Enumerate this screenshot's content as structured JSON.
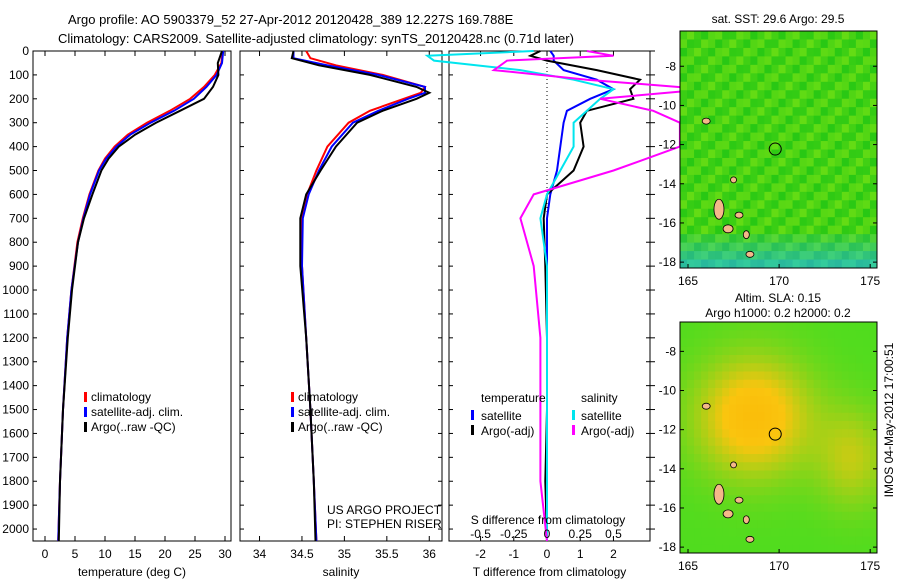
{
  "header": {
    "title_line1": "Argo profile: AO 5903379_52 27-Apr-2012 20120428_389 12.227S 169.788E",
    "title_line2": "Climatology: CARS2009. Satellite-adjusted climatology: synTS_20120428.nc (0.71d later)"
  },
  "colors": {
    "clim": "#ff0000",
    "sat": "#0000ff",
    "argo": "#000000",
    "sal_sat": "#00e5ee",
    "sal_argo": "#ff00ff"
  },
  "chart_data": [
    {
      "type": "line",
      "xlabel": "temperature (deg C)",
      "ylabel": "",
      "xlim": [
        -2,
        31
      ],
      "ylim": [
        2050,
        0
      ],
      "xticks": [
        "0",
        "5",
        "10",
        "15",
        "20",
        "25",
        "30"
      ],
      "yticks": [
        "0",
        "100",
        "200",
        "300",
        "400",
        "500",
        "600",
        "700",
        "800",
        "900",
        "1000",
        "1100",
        "1200",
        "1300",
        "1400",
        "1500",
        "1600",
        "1700",
        "1800",
        "1900",
        "2000"
      ],
      "legend": [
        "climatology",
        "satellite-adj. clim.",
        "Argo(..raw -QC)"
      ],
      "depth": [
        0,
        50,
        100,
        150,
        200,
        250,
        300,
        350,
        400,
        450,
        500,
        600,
        700,
        800,
        1000,
        1200,
        1500,
        1800,
        2050
      ],
      "series": [
        {
          "name": "climatology",
          "values": [
            29.6,
            29.4,
            28.3,
            26.5,
            24.2,
            20.8,
            17.0,
            13.8,
            11.6,
            10.0,
            8.9,
            7.4,
            6.3,
            5.4,
            4.4,
            3.7,
            3.0,
            2.5,
            2.2
          ]
        },
        {
          "name": "satellite-adj. clim.",
          "values": [
            29.7,
            29.5,
            28.6,
            26.9,
            24.8,
            21.5,
            17.6,
            14.2,
            11.9,
            10.2,
            9.0,
            7.5,
            6.4,
            5.5,
            4.4,
            3.7,
            3.0,
            2.5,
            2.2
          ]
        },
        {
          "name": "Argo(..raw -QC)",
          "values": [
            29.5,
            28.8,
            28.9,
            28.0,
            26.5,
            22.5,
            18.5,
            15.0,
            12.3,
            10.6,
            9.4,
            7.9,
            6.5,
            5.5,
            4.5,
            3.8,
            3.0,
            2.5,
            2.3
          ]
        }
      ]
    },
    {
      "type": "line",
      "xlabel": "salinity",
      "xlim": [
        33.77,
        36.15
      ],
      "ylim": [
        2050,
        0
      ],
      "xticks": [
        "34",
        "34.5",
        "35",
        "35.5",
        "36"
      ],
      "legend": [
        "climatology",
        "satellite-adj. clim.",
        "Argo(..raw -QC)"
      ],
      "annotation": [
        "US ARGO PROJECT",
        "PI: STEPHEN RISER"
      ],
      "depth": [
        0,
        30,
        60,
        100,
        150,
        175,
        200,
        250,
        300,
        400,
        500,
        600,
        700,
        900,
        1200,
        1500,
        1800,
        2050
      ],
      "series": [
        {
          "name": "climatology",
          "values": [
            34.55,
            34.6,
            34.9,
            35.45,
            35.95,
            35.9,
            35.7,
            35.3,
            35.05,
            34.8,
            34.67,
            34.56,
            34.5,
            34.5,
            34.55,
            34.6,
            34.64,
            34.67
          ]
        },
        {
          "name": "satellite-adj. clim.",
          "values": [
            34.4,
            34.4,
            34.8,
            35.4,
            35.95,
            35.95,
            35.75,
            35.4,
            35.1,
            34.85,
            34.7,
            34.58,
            34.51,
            34.5,
            34.55,
            34.6,
            34.64,
            34.67
          ]
        },
        {
          "name": "Argo(..raw -QC)",
          "values": [
            34.4,
            34.38,
            34.7,
            35.3,
            35.85,
            36.0,
            35.85,
            35.45,
            35.15,
            34.9,
            34.72,
            34.55,
            34.48,
            34.48,
            34.55,
            34.6,
            34.64,
            34.66
          ]
        }
      ]
    },
    {
      "type": "line",
      "xlabel": "T difference from climatology",
      "x2label": "S difference from climatology",
      "xlim": [
        -2.95,
        3.1
      ],
      "ylim": [
        2050,
        0
      ],
      "xticks": [
        "-2",
        "-1",
        "0",
        "1",
        "2"
      ],
      "x2ticks": [
        "-0.5",
        "-0.25",
        "0",
        "0.25",
        "0.5"
      ],
      "legend_temperature": {
        "title": "temperature",
        "items": [
          "satellite",
          "Argo(-adj)"
        ]
      },
      "legend_salinity": {
        "title": "salinity",
        "items": [
          "satellite",
          "Argo(-adj)"
        ]
      },
      "depth": [
        0,
        20,
        40,
        80,
        120,
        160,
        200,
        250,
        300,
        400,
        500,
        600,
        700,
        900,
        1200,
        1500,
        1800,
        2050
      ],
      "series": [
        {
          "name": "temperature satellite",
          "values": [
            0.1,
            0.2,
            0.2,
            0.5,
            1.5,
            2.0,
            1.3,
            0.6,
            0.5,
            0.4,
            0.3,
            0.1,
            0.0,
            0.0,
            0.0,
            0.0,
            0.0,
            0.0
          ]
        },
        {
          "name": "temperature Argo(-adj)",
          "values": [
            -0.2,
            -0.5,
            0.0,
            1.5,
            2.8,
            2.5,
            2.6,
            1.2,
            1.0,
            1.1,
            0.8,
            0.0,
            -0.1,
            -0.05,
            0.0,
            0.0,
            -0.05,
            0.0
          ]
        },
        {
          "name": "salinity satellite",
          "values": [
            -0.1,
            -0.9,
            -0.85,
            -0.2,
            0.2,
            0.5,
            0.4,
            0.3,
            0.2,
            0.2,
            0.1,
            0.0,
            -0.05,
            0.0,
            0.0,
            0.0,
            0.0,
            0.0
          ]
        },
        {
          "name": "salinity Argo(-adj)",
          "values": [
            0.3,
            0.5,
            -0.3,
            -0.4,
            0.3,
            1.2,
            0.4,
            0.8,
            1.0,
            1.0,
            0.5,
            -0.1,
            -0.2,
            -0.1,
            -0.05,
            -0.05,
            -0.05,
            0.0
          ]
        }
      ]
    }
  ],
  "maps": [
    {
      "title": "sat. SST: 29.6 Argo: 29.5",
      "subtitle": "",
      "xticks": [
        "165",
        "170",
        "175"
      ],
      "yticks": [
        "-8",
        "-10",
        "-12",
        "-14",
        "-16",
        "-18"
      ],
      "float_lon": 169.788,
      "float_lat": -12.227
    },
    {
      "title": "Altim. SLA: 0.15",
      "subtitle": "Argo h1000: 0.2 h2000: 0.2",
      "xticks": [
        "165",
        "170",
        "175"
      ],
      "yticks": [
        "-8",
        "-10",
        "-12",
        "-14",
        "-16",
        "-18"
      ],
      "float_lon": 169.788,
      "float_lat": -12.227
    }
  ],
  "footer_stamp": "IMOS 04-May-2012 17:00:51"
}
